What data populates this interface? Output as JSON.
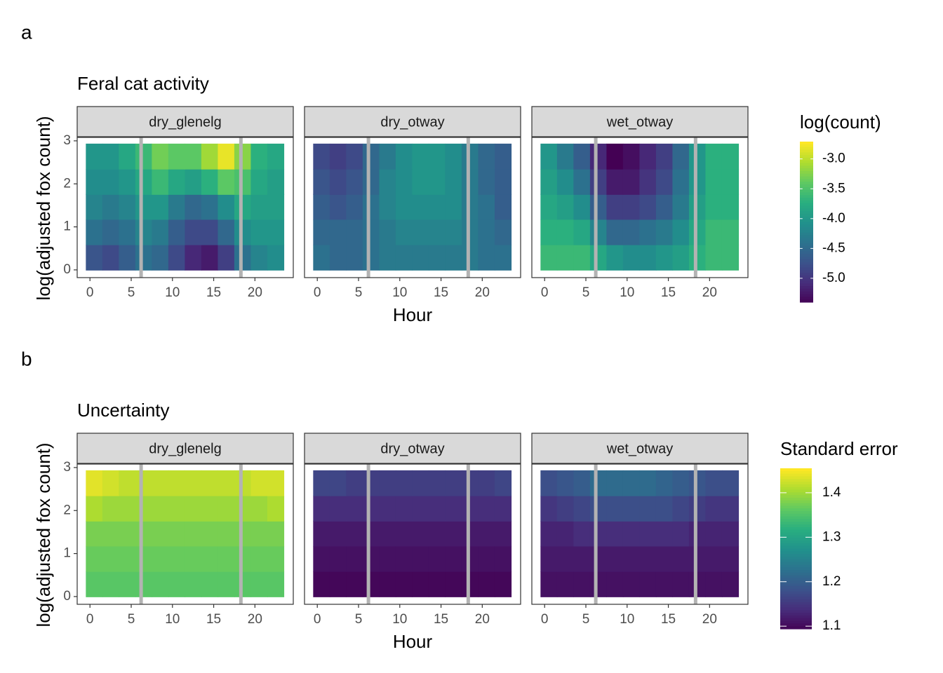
{
  "chart_data": [
    {
      "type": "heatmap",
      "tag": "a",
      "title": "Feral cat activity",
      "xlabel": "Hour",
      "ylabel": "log(adjusted fox count)",
      "legend_title": "log(count)",
      "colormap": "viridis",
      "clim": [
        -5.4,
        -2.71
      ],
      "cticks": [
        {
          "value": -3,
          "label": "-3.0"
        },
        -3.5,
        {
          "value": -4,
          "label": "-4.0"
        },
        -4.5,
        {
          "value": -5,
          "label": "-5.0"
        }
      ],
      "x": [
        0.5,
        2.5,
        4.5,
        6.5,
        8.5,
        10.5,
        12.5,
        14.5,
        16.5,
        18.5,
        20.5,
        22.5
      ],
      "y": [
        0.29,
        0.88,
        1.47,
        2.05,
        2.64
      ],
      "xlim": [
        -1.55,
        24.65
      ],
      "ylim": [
        -0.18,
        3.08
      ],
      "xticks": [
        0,
        5,
        10,
        15,
        20
      ],
      "yticks": [
        0,
        1,
        2,
        3
      ],
      "vlines": [
        6.2,
        18.3
      ],
      "vline_color": "#b3b3b3",
      "strip_color": "#d9d9d9",
      "facets": [
        {
          "name": "dry_glenelg",
          "values": [
            [
              -4.7,
              -4.8,
              -4.6,
              -4.4,
              -4.5,
              -4.8,
              -5.1,
              -5.2,
              -4.9,
              -4.4,
              -4.2,
              -4.1
            ],
            [
              -4.4,
              -4.5,
              -4.4,
              -4.2,
              -4.3,
              -4.6,
              -4.8,
              -4.8,
              -4.5,
              -4.1,
              -4.0,
              -4.0
            ],
            [
              -4.2,
              -4.3,
              -4.2,
              -4.0,
              -4.0,
              -4.3,
              -4.5,
              -4.4,
              -4.1,
              -3.8,
              -3.9,
              -3.9
            ],
            [
              -4.1,
              -4.1,
              -4.0,
              -3.8,
              -3.6,
              -3.8,
              -3.9,
              -3.7,
              -3.4,
              -3.5,
              -3.8,
              -3.9
            ],
            [
              -4.0,
              -4.0,
              -3.8,
              -3.6,
              -3.3,
              -3.4,
              -3.4,
              -3.1,
              -2.8,
              -3.2,
              -3.7,
              -3.8
            ]
          ]
        },
        {
          "name": "dry_otway",
          "values": [
            [
              -4.4,
              -4.5,
              -4.5,
              -4.4,
              -4.3,
              -4.3,
              -4.3,
              -4.3,
              -4.3,
              -4.3,
              -4.4,
              -4.4
            ],
            [
              -4.5,
              -4.5,
              -4.5,
              -4.4,
              -4.3,
              -4.2,
              -4.2,
              -4.2,
              -4.2,
              -4.3,
              -4.4,
              -4.5
            ],
            [
              -4.6,
              -4.7,
              -4.6,
              -4.4,
              -4.2,
              -4.1,
              -4.1,
              -4.1,
              -4.1,
              -4.3,
              -4.4,
              -4.6
            ],
            [
              -4.7,
              -4.8,
              -4.7,
              -4.5,
              -4.2,
              -4.1,
              -4.0,
              -4.0,
              -4.1,
              -4.3,
              -4.5,
              -4.6
            ],
            [
              -4.8,
              -4.9,
              -4.8,
              -4.5,
              -4.3,
              -4.1,
              -4.0,
              -4.0,
              -4.1,
              -4.3,
              -4.5,
              -4.6
            ]
          ]
        },
        {
          "name": "wet_otway",
          "values": [
            [
              -3.6,
              -3.6,
              -3.6,
              -3.8,
              -4.0,
              -4.1,
              -4.1,
              -4.0,
              -3.9,
              -3.7,
              -3.6,
              -3.6
            ],
            [
              -3.7,
              -3.7,
              -3.8,
              -4.2,
              -4.5,
              -4.5,
              -4.4,
              -4.3,
              -4.1,
              -3.8,
              -3.6,
              -3.6
            ],
            [
              -3.8,
              -3.9,
              -4.1,
              -4.6,
              -4.9,
              -4.9,
              -4.8,
              -4.6,
              -4.3,
              -3.9,
              -3.7,
              -3.7
            ],
            [
              -3.9,
              -4.1,
              -4.4,
              -4.9,
              -5.2,
              -5.2,
              -5.0,
              -4.8,
              -4.4,
              -4.0,
              -3.7,
              -3.7
            ],
            [
              -4.0,
              -4.3,
              -4.6,
              -5.1,
              -5.4,
              -5.3,
              -5.1,
              -4.9,
              -4.5,
              -4.0,
              -3.7,
              -3.7
            ]
          ]
        }
      ]
    },
    {
      "type": "heatmap",
      "tag": "b",
      "title": "Uncertainty",
      "xlabel": "Hour",
      "ylabel": "log(adjusted fox count)",
      "legend_title": "Standard error",
      "colormap": "viridis",
      "clim": [
        1.094,
        1.455
      ],
      "cticks": [
        1.1,
        1.2,
        1.3,
        1.4
      ],
      "x": [
        0.5,
        2.5,
        4.5,
        6.5,
        8.5,
        10.5,
        12.5,
        14.5,
        16.5,
        18.5,
        20.5,
        22.5
      ],
      "y": [
        0.29,
        0.88,
        1.47,
        2.05,
        2.64
      ],
      "xlim": [
        -1.55,
        24.65
      ],
      "ylim": [
        -0.18,
        3.08
      ],
      "xticks": [
        0,
        5,
        10,
        15,
        20
      ],
      "yticks": [
        0,
        1,
        2,
        3
      ],
      "vlines": [
        6.2,
        18.3
      ],
      "vline_color": "#b3b3b3",
      "strip_color": "#d9d9d9",
      "facets": [
        {
          "name": "dry_glenelg",
          "values": [
            [
              1.36,
              1.36,
              1.36,
              1.36,
              1.36,
              1.36,
              1.36,
              1.36,
              1.36,
              1.36,
              1.36,
              1.36
            ],
            [
              1.37,
              1.37,
              1.37,
              1.37,
              1.37,
              1.37,
              1.37,
              1.37,
              1.37,
              1.37,
              1.37,
              1.37
            ],
            [
              1.38,
              1.38,
              1.38,
              1.38,
              1.38,
              1.38,
              1.38,
              1.38,
              1.38,
              1.38,
              1.38,
              1.38
            ],
            [
              1.41,
              1.4,
              1.4,
              1.4,
              1.4,
              1.4,
              1.4,
              1.4,
              1.4,
              1.4,
              1.4,
              1.41
            ],
            [
              1.44,
              1.43,
              1.42,
              1.42,
              1.42,
              1.42,
              1.42,
              1.42,
              1.42,
              1.42,
              1.43,
              1.43
            ]
          ]
        },
        {
          "name": "dry_otway",
          "values": [
            [
              1.1,
              1.1,
              1.1,
              1.1,
              1.1,
              1.1,
              1.1,
              1.1,
              1.1,
              1.1,
              1.1,
              1.1
            ],
            [
              1.11,
              1.11,
              1.11,
              1.11,
              1.11,
              1.11,
              1.11,
              1.11,
              1.11,
              1.11,
              1.11,
              1.11
            ],
            [
              1.12,
              1.12,
              1.12,
              1.12,
              1.12,
              1.12,
              1.12,
              1.12,
              1.12,
              1.12,
              1.12,
              1.12
            ],
            [
              1.14,
              1.14,
              1.14,
              1.14,
              1.14,
              1.14,
              1.14,
              1.14,
              1.14,
              1.14,
              1.14,
              1.14
            ],
            [
              1.17,
              1.17,
              1.16,
              1.16,
              1.16,
              1.16,
              1.16,
              1.16,
              1.16,
              1.16,
              1.16,
              1.17
            ]
          ]
        },
        {
          "name": "wet_otway",
          "values": [
            [
              1.11,
              1.11,
              1.11,
              1.11,
              1.11,
              1.11,
              1.11,
              1.11,
              1.11,
              1.11,
              1.11,
              1.11
            ],
            [
              1.12,
              1.12,
              1.12,
              1.12,
              1.12,
              1.12,
              1.12,
              1.12,
              1.12,
              1.12,
              1.12,
              1.12
            ],
            [
              1.13,
              1.13,
              1.14,
              1.14,
              1.14,
              1.14,
              1.14,
              1.14,
              1.14,
              1.13,
              1.13,
              1.13
            ],
            [
              1.15,
              1.16,
              1.17,
              1.18,
              1.18,
              1.18,
              1.18,
              1.18,
              1.17,
              1.16,
              1.15,
              1.15
            ],
            [
              1.18,
              1.19,
              1.2,
              1.22,
              1.22,
              1.22,
              1.22,
              1.21,
              1.2,
              1.19,
              1.18,
              1.18
            ]
          ]
        }
      ]
    }
  ]
}
